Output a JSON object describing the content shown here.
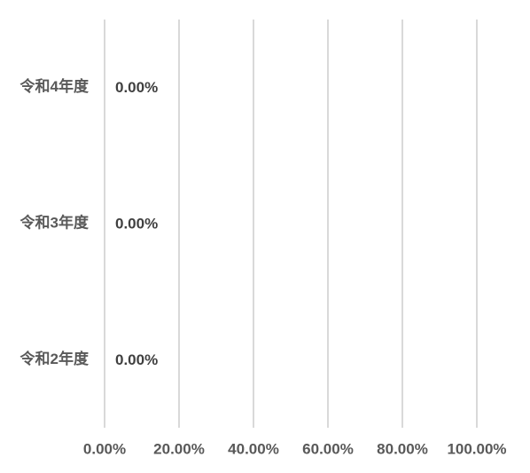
{
  "chart_data": {
    "type": "hbar",
    "categories": [
      "令和4年度",
      "令和3年度",
      "令和2年度"
    ],
    "values": [
      0,
      0,
      0
    ],
    "value_labels": [
      "0.00%",
      "0.00%",
      "0.00%"
    ],
    "color": "#d9d9d9",
    "xlim": [
      0,
      100
    ],
    "xticks": [
      {
        "value": 0,
        "label": "0.00%"
      },
      {
        "value": 20,
        "label": "20.00%"
      },
      {
        "value": 40,
        "label": "40.00%"
      },
      {
        "value": 60,
        "label": "60.00%"
      },
      {
        "value": 80,
        "label": "80.00%"
      },
      {
        "value": 100,
        "label": "100.00%"
      }
    ],
    "grid": true
  }
}
